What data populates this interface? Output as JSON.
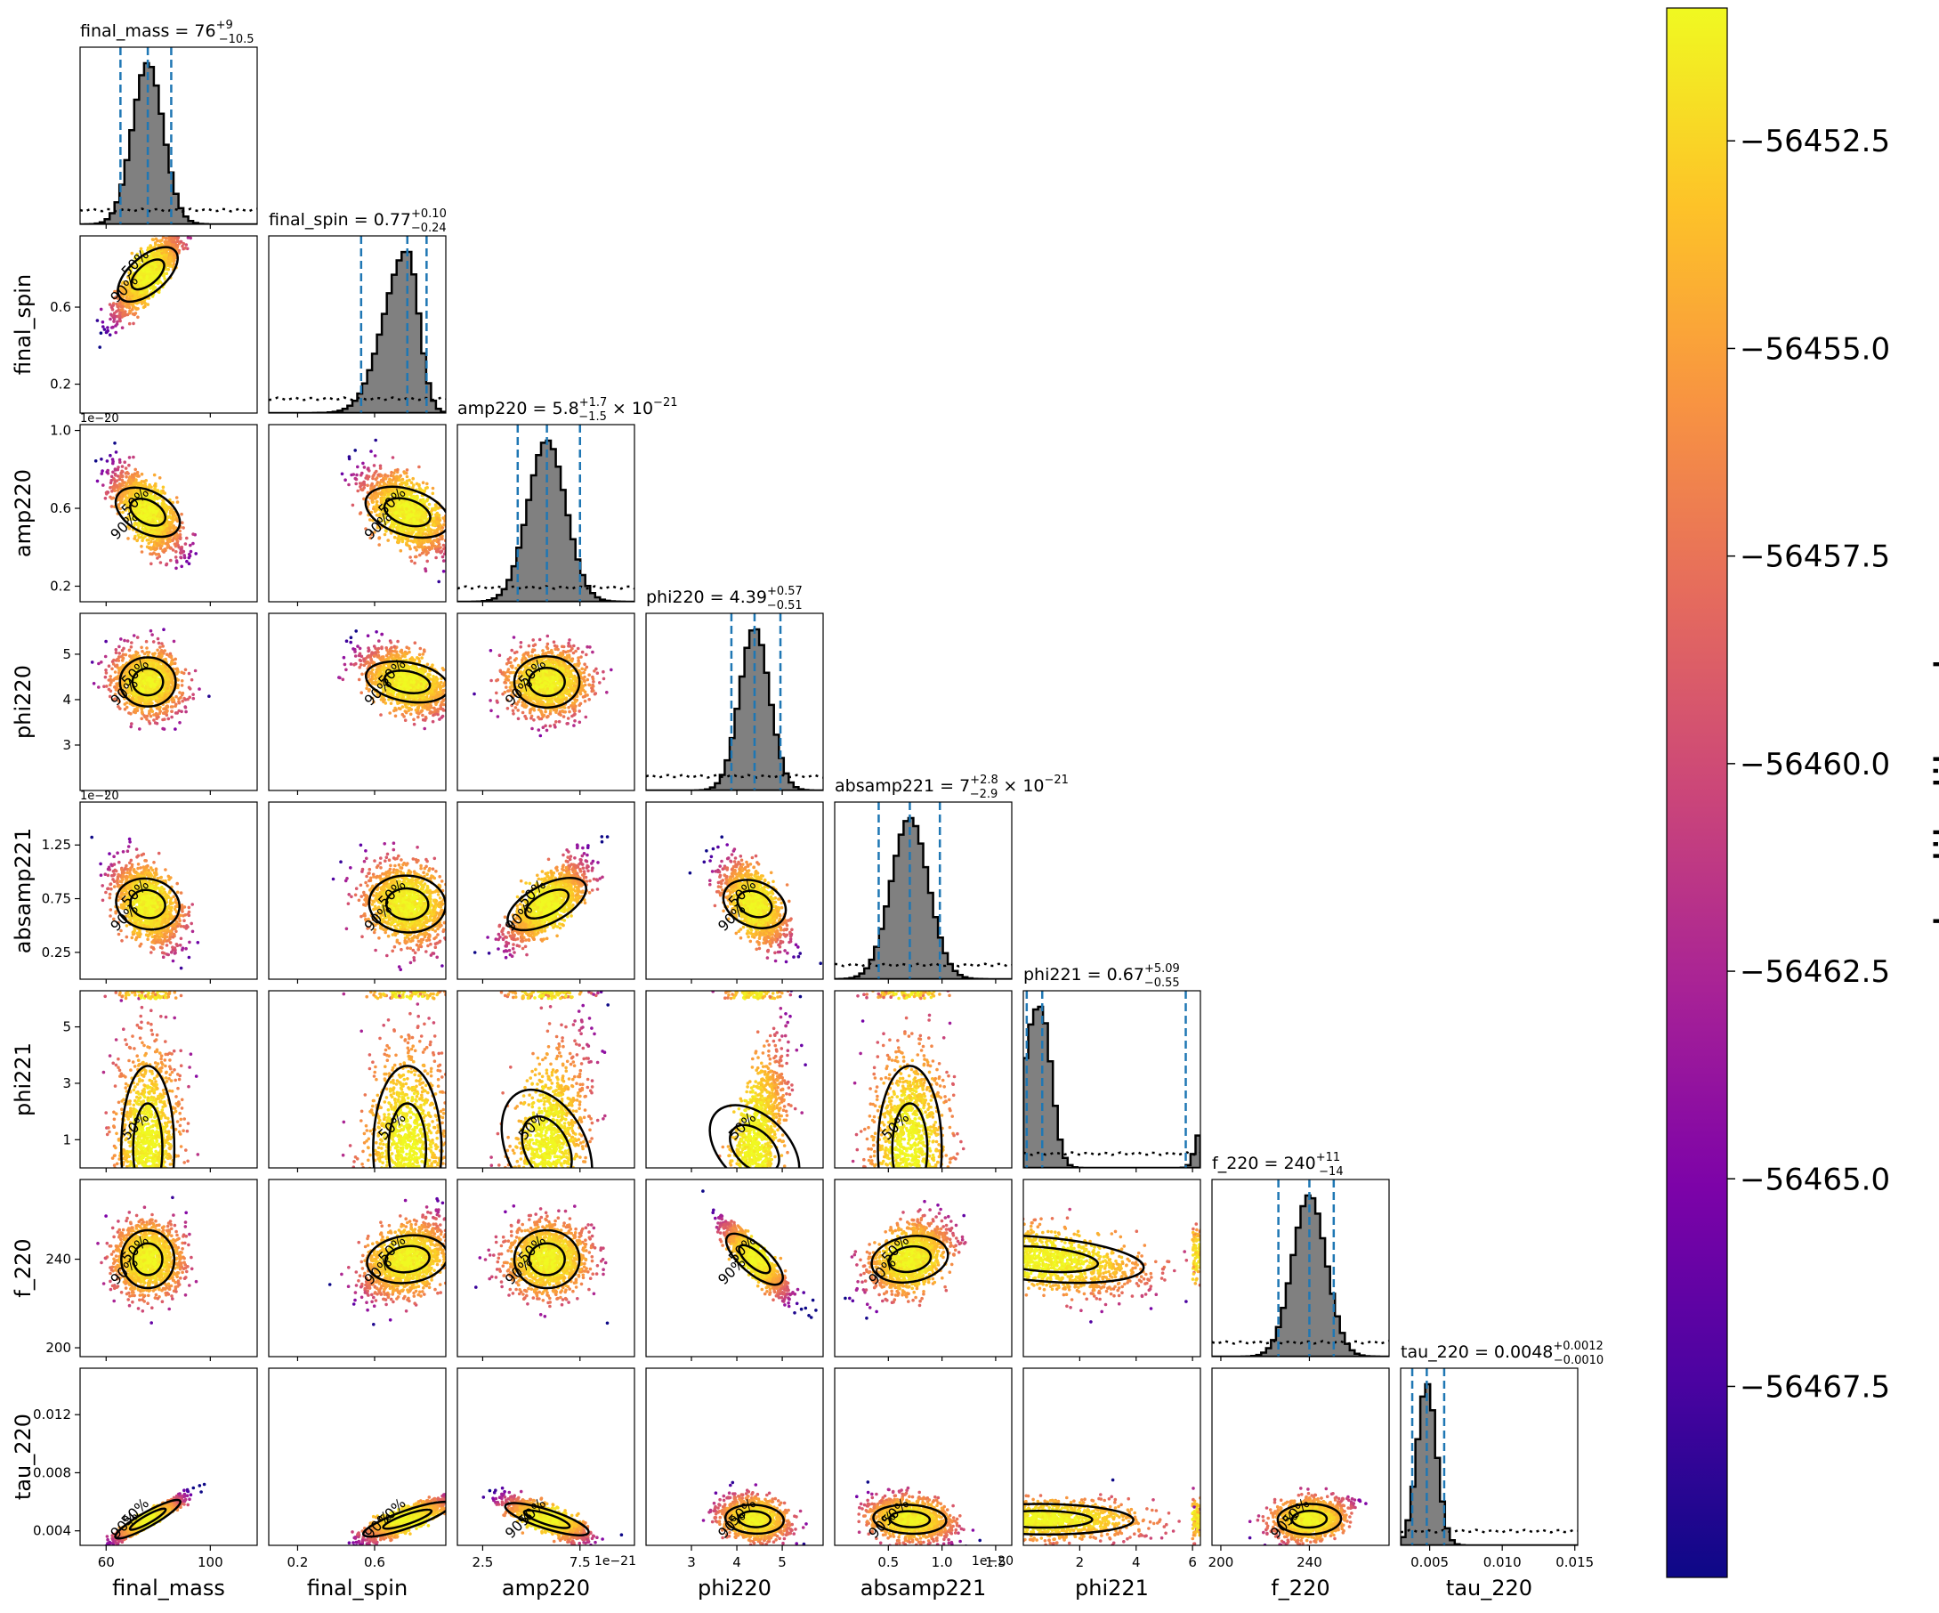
{
  "chart_data": {
    "type": "corner",
    "parameters": [
      {
        "name": "final_mass",
        "range": [
          50,
          118
        ],
        "ticks": [
          60,
          100
        ],
        "tick_labels": [
          "60",
          "100"
        ],
        "median": 76,
        "lo": 65.5,
        "hi": 85,
        "title_value": "76",
        "title_plus": "+9",
        "title_minus": "−10.5",
        "title_suffix": "",
        "offset": ""
      },
      {
        "name": "final_spin",
        "range": [
          0.05,
          0.97
        ],
        "ticks": [
          0.2,
          0.6
        ],
        "tick_labels": [
          "0.2",
          "0.6"
        ],
        "median": 0.77,
        "lo": 0.53,
        "hi": 0.87,
        "title_value": "0.77",
        "title_plus": "+0.10",
        "title_minus": "−0.24",
        "title_suffix": "",
        "offset": ""
      },
      {
        "name": "amp220",
        "range": [
          1.2,
          10.3
        ],
        "ticks": [
          2.5,
          7.5
        ],
        "tick_labels": [
          "2.5",
          "7.5"
        ],
        "y_ticks": [
          2,
          6,
          10
        ],
        "y_tick_labels": [
          "0.2",
          "0.6",
          "1.0"
        ],
        "median": 5.8,
        "lo": 4.3,
        "hi": 7.5,
        "title_value": "5.8",
        "title_plus": "+1.7",
        "title_minus": "−1.5",
        "title_suffix": " × 10",
        "title_exp": "−21",
        "offset": "1e−21",
        "y_offset": "1e−20"
      },
      {
        "name": "phi220",
        "range": [
          2.0,
          5.9
        ],
        "ticks": [
          3,
          4,
          5
        ],
        "tick_labels": [
          "3",
          "4",
          "5"
        ],
        "median": 4.39,
        "lo": 3.88,
        "hi": 4.96,
        "title_value": "4.39",
        "title_plus": "+0.57",
        "title_minus": "−0.51",
        "title_suffix": "",
        "offset": "",
        "y_offset": ""
      },
      {
        "name": "absamp221",
        "range": [
          0.0,
          1.65
        ],
        "ticks": [
          0.5,
          1.0,
          1.5
        ],
        "tick_labels": [
          "0.5",
          "1.0",
          "1.5"
        ],
        "y_ticks": [
          0.25,
          0.75,
          1.25
        ],
        "y_tick_labels": [
          "0.25",
          "0.75",
          "1.25"
        ],
        "median": 0.7,
        "lo": 0.41,
        "hi": 0.98,
        "title_value": "7",
        "title_plus": "+2.8",
        "title_minus": "−2.9",
        "title_suffix": " × 10",
        "title_exp": "−21",
        "offset": "1e−20",
        "y_offset": "1e−20"
      },
      {
        "name": "phi221",
        "range": [
          0.0,
          6.28
        ],
        "ticks": [
          2,
          4,
          6
        ],
        "tick_labels": [
          "2",
          "4",
          "6"
        ],
        "y_ticks": [
          1,
          3,
          5
        ],
        "y_tick_labels": [
          "1",
          "3",
          "5"
        ],
        "median": 0.67,
        "lo": 0.12,
        "hi": 5.76,
        "title_value": "0.67",
        "title_plus": "+5.09",
        "title_minus": "−0.55",
        "title_suffix": "",
        "offset": ""
      },
      {
        "name": "f_220",
        "range": [
          196,
          276
        ],
        "ticks": [
          200,
          240
        ],
        "tick_labels": [
          "200",
          "240"
        ],
        "median": 240,
        "lo": 226,
        "hi": 251,
        "title_value": "240",
        "title_plus": "+11",
        "title_minus": "−14",
        "title_suffix": "",
        "offset": ""
      },
      {
        "name": "tau_220",
        "range": [
          0.003,
          0.0152
        ],
        "ticks": [
          0.005,
          0.01,
          0.015
        ],
        "tick_labels": [
          "0.005",
          "0.010",
          "0.015"
        ],
        "y_ticks": [
          0.004,
          0.008,
          0.012
        ],
        "y_tick_labels": [
          "0.004",
          "0.008",
          "0.012"
        ],
        "median": 0.0048,
        "lo": 0.0038,
        "hi": 0.006,
        "title_value": "0.0048",
        "title_plus": "+0.0012",
        "title_minus": "−0.0010",
        "title_suffix": "",
        "offset": ""
      }
    ],
    "contour_labels": [
      "50%",
      "90%"
    ],
    "correlations": [
      [],
      [
        0.85
      ],
      [
        -0.7,
        -0.6
      ],
      [
        -0.1,
        -0.5,
        0.0
      ],
      [
        -0.45,
        -0.25,
        0.75,
        -0.6
      ],
      [
        0.0,
        0.0,
        0.5,
        0.7,
        0.0
      ],
      [
        0.0,
        0.4,
        0.0,
        -0.9,
        0.45,
        -0.5
      ],
      [
        0.95,
        0.85,
        -0.8,
        -0.3,
        -0.3,
        -0.2,
        0.2
      ]
    ],
    "colorbar": {
      "label": "loglikelihood",
      "colormap": "plasma",
      "range": [
        -56469.8,
        -56450.9
      ],
      "ticks": [
        -56452.5,
        -56455.0,
        -56457.5,
        -56460.0,
        -56462.5,
        -56465.0,
        -56467.5
      ],
      "tick_labels": [
        "−56452.5",
        "−56455.0",
        "−56457.5",
        "−56460.0",
        "−56462.5",
        "−56465.0",
        "−56467.5"
      ]
    }
  }
}
